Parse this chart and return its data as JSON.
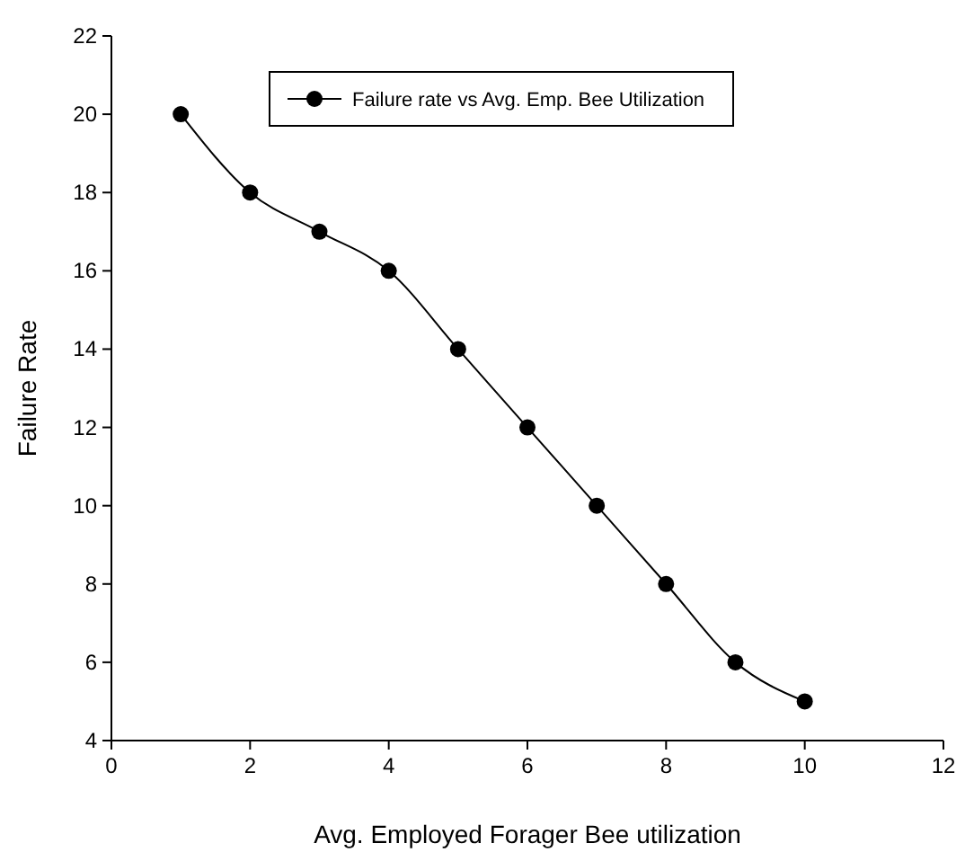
{
  "chart_data": {
    "type": "line",
    "xlabel": "Avg. Employed Forager Bee utilization",
    "ylabel": "Failure Rate",
    "x": [
      1,
      2,
      3,
      4,
      5,
      6,
      7,
      8,
      9,
      10
    ],
    "series": [
      {
        "name": "Failure rate vs Avg. Emp. Bee Utilization",
        "color": "#000000",
        "values": [
          20,
          18,
          17,
          16,
          14,
          12,
          10,
          8,
          6,
          5
        ]
      }
    ],
    "xlim": [
      0,
      12
    ],
    "xticks": [
      0,
      2,
      4,
      6,
      8,
      10,
      12
    ],
    "ylim": [
      4,
      22
    ],
    "yticks": [
      4,
      6,
      8,
      10,
      12,
      14,
      16,
      18,
      20,
      22
    ],
    "legend": "top",
    "marker": "circle",
    "line_style": "solid",
    "grid": false
  }
}
